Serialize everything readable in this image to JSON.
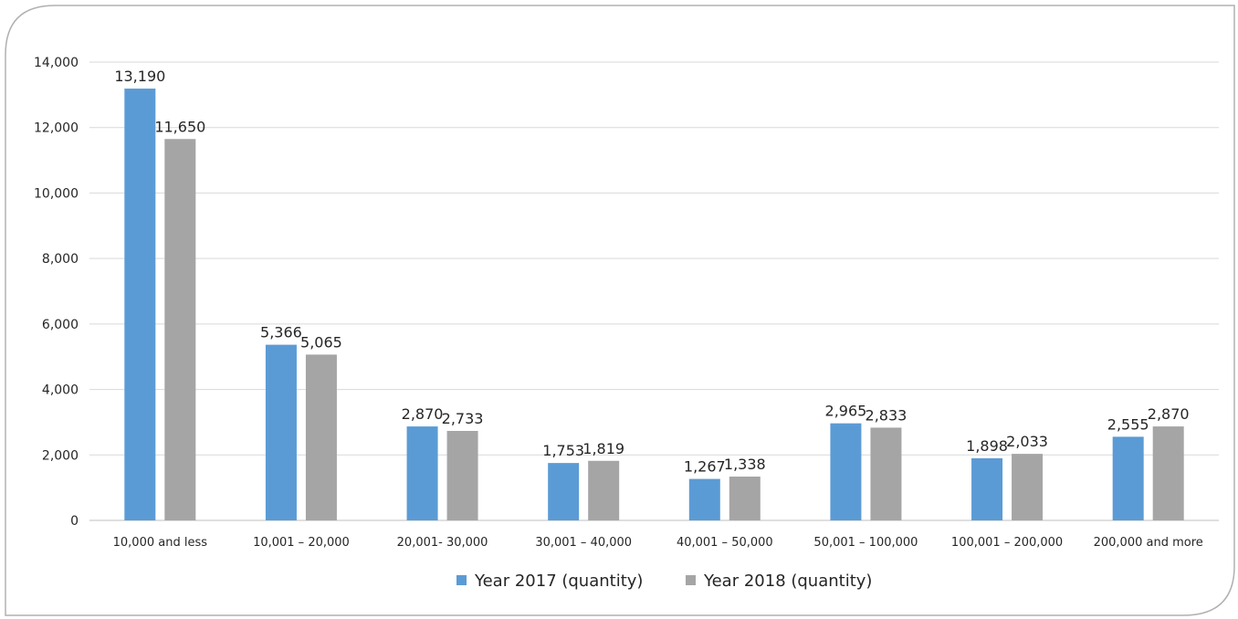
{
  "chart_data": {
    "type": "bar",
    "categories": [
      "10,000 and less",
      "10,001 – 20,000",
      "20,001- 30,000",
      "30,001 – 40,000",
      "40,001 – 50,000",
      "50,001 – 100,000",
      "100,001 – 200,000",
      "200,000 and more"
    ],
    "series": [
      {
        "name": "Year 2017 (quantity)",
        "values": [
          13190,
          5366,
          2870,
          1753,
          1267,
          2965,
          1898,
          2555
        ],
        "labels": [
          "13,190",
          "5,366",
          "2,870",
          "1,753",
          "1,267",
          "2,965",
          "1,898",
          "2,555"
        ],
        "color": "#5B9BD5"
      },
      {
        "name": "Year 2018 (quantity)",
        "values": [
          11650,
          5065,
          2733,
          1819,
          1338,
          2833,
          2033,
          2870
        ],
        "labels": [
          "11,650",
          "5,065",
          "2,733",
          "1,819",
          "1,338",
          "2,833",
          "2,033",
          "2,870"
        ],
        "color": "#A5A5A5"
      }
    ],
    "yticks": [
      "0",
      "2,000",
      "4,000",
      "6,000",
      "8,000",
      "10,000",
      "12,000",
      "14,000"
    ],
    "ylim": [
      0,
      14000
    ],
    "grid": true,
    "legend": "bottom",
    "title": "",
    "xlabel": "",
    "ylabel": ""
  }
}
